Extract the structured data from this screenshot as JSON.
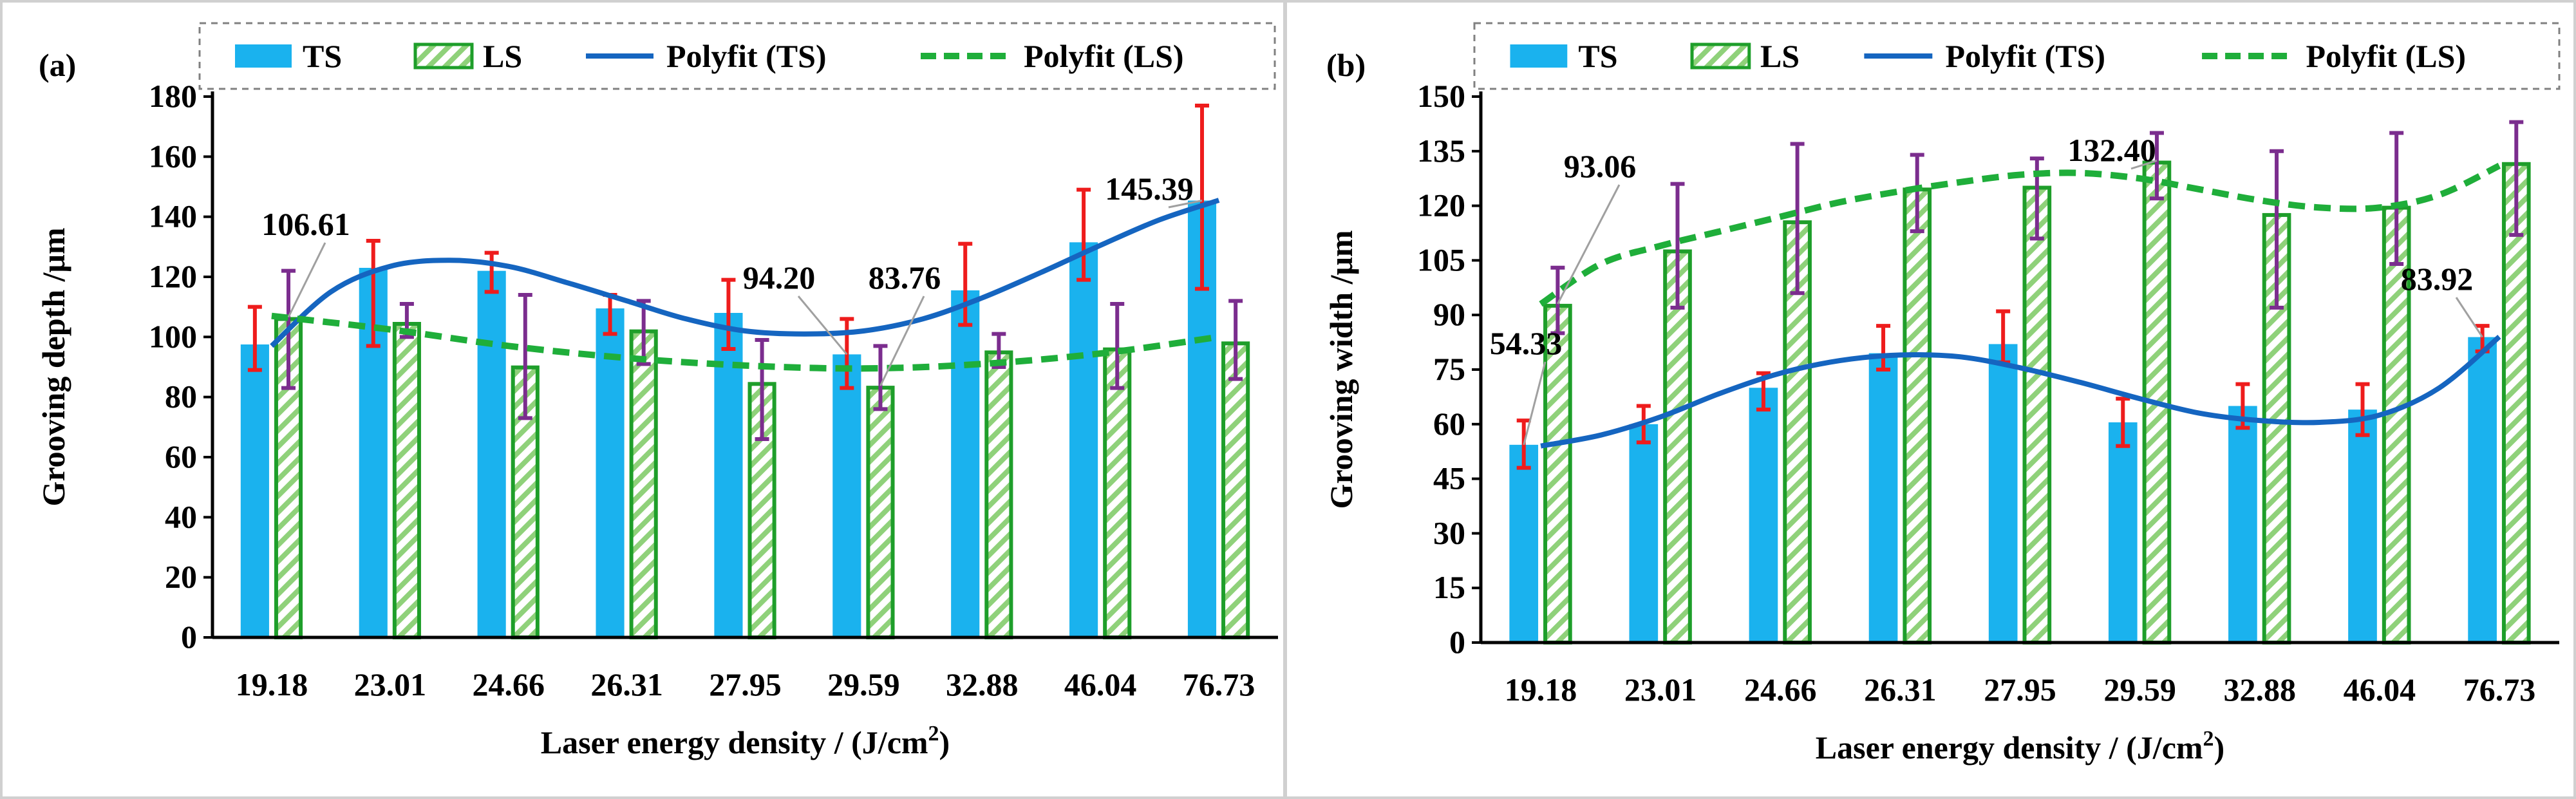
{
  "colors": {
    "ts_bar": "#1ab2ee",
    "ls_bar_stripe": "#8fd17a",
    "ls_bar_border": "#1e9e2a",
    "ts_fit": "#1565c0",
    "ls_fit": "#1fae3a",
    "ts_error": "#ee1c1c",
    "ls_error": "#7b2d8e",
    "axis": "#000000",
    "legend_border": "#808080"
  },
  "chart_data": [
    {
      "type": "bar",
      "panel_label": "(a)",
      "title": "",
      "xlabel": "Laser energy density / (J/cm",
      "xlabel_sup": "2",
      "xlabel_end": ")",
      "ylabel": "Grooving depth /μm",
      "categories": [
        "19.18",
        "23.01",
        "24.66",
        "26.31",
        "27.95",
        "29.59",
        "32.88",
        "46.04",
        "76.73"
      ],
      "ylim": [
        0,
        180
      ],
      "yticks": [
        "0",
        "20",
        "40",
        "60",
        "80",
        "100",
        "120",
        "140",
        "160",
        "180"
      ],
      "legend": [
        "TS",
        "LS",
        "Polyfit (TS)",
        "Polyfit (LS)"
      ],
      "series": [
        {
          "name": "TS",
          "values": [
            97.5,
            123,
            122,
            109.5,
            108,
            94.2,
            115.5,
            131.5,
            145.39
          ],
          "err_low": [
            89,
            97,
            115,
            101,
            96,
            83,
            104,
            119,
            116
          ],
          "err_high": [
            110,
            132,
            128,
            114,
            119,
            106,
            131,
            149,
            177
          ]
        },
        {
          "name": "LS",
          "values": [
            106.61,
            105,
            90.5,
            102.5,
            85,
            83.76,
            95.5,
            96.5,
            98.5
          ],
          "err_low": [
            83,
            100,
            73,
            91,
            66,
            76,
            90,
            83,
            86
          ],
          "err_high": [
            122,
            111,
            114,
            112,
            99,
            97,
            101,
            111,
            112
          ]
        }
      ],
      "fits": [
        {
          "name": "Polyfit (TS)",
          "x": [
            0,
            0.5,
            1,
            1.5,
            2,
            2.5,
            3,
            3.5,
            4,
            4.5,
            5,
            5.5,
            6,
            6.5,
            7,
            7.5,
            8
          ],
          "y": [
            97,
            115,
            123.5,
            125.5,
            123.5,
            118,
            112,
            106,
            102,
            101,
            102,
            106,
            113,
            121.5,
            130.5,
            139,
            145.5
          ]
        },
        {
          "name": "Polyfit (LS)",
          "x": [
            0,
            1,
            2,
            3,
            4,
            5,
            6,
            7,
            8
          ],
          "y": [
            107,
            102.5,
            97,
            93,
            90.5,
            89.5,
            91,
            94.5,
            100
          ]
        }
      ],
      "annotations": [
        {
          "text": "106.61",
          "index": 0,
          "series": "LS"
        },
        {
          "text": "94.20",
          "index": 5,
          "series": "TS"
        },
        {
          "text": "83.76",
          "index": 5,
          "series": "LS"
        },
        {
          "text": "145.39",
          "index": 8,
          "series": "TS"
        }
      ]
    },
    {
      "type": "bar",
      "panel_label": "(b)",
      "title": "",
      "xlabel": "Laser energy density / (J/cm",
      "xlabel_sup": "2",
      "xlabel_end": ")",
      "ylabel": "Grooving width /μm",
      "categories": [
        "19.18",
        "23.01",
        "24.66",
        "26.31",
        "27.95",
        "29.59",
        "32.88",
        "46.04",
        "76.73"
      ],
      "ylim": [
        0,
        150
      ],
      "yticks": [
        "0",
        "15",
        "30",
        "45",
        "60",
        "75",
        "90",
        "105",
        "120",
        "135",
        "150"
      ],
      "legend": [
        "TS",
        "LS",
        "Polyfit (TS)",
        "Polyfit (LS)"
      ],
      "series": [
        {
          "name": "TS",
          "values": [
            54.33,
            60,
            70,
            79.5,
            82,
            60.5,
            65,
            64,
            83.92
          ],
          "err_low": [
            48,
            55,
            64,
            75,
            77,
            54,
            59,
            57,
            80
          ],
          "err_high": [
            61,
            65,
            74,
            87,
            91,
            67,
            71,
            71,
            87
          ]
        },
        {
          "name": "LS",
          "values": [
            93.06,
            108,
            116,
            125,
            125.5,
            132.4,
            118,
            120,
            132
          ],
          "err_low": [
            85,
            92,
            96,
            113,
            111,
            122,
            92,
            104,
            112
          ],
          "err_high": [
            103,
            126,
            137,
            134,
            133,
            140,
            135,
            140,
            143
          ]
        }
      ],
      "fits": [
        {
          "name": "Polyfit (TS)",
          "x": [
            0,
            0.5,
            1,
            1.5,
            2,
            2.5,
            3,
            3.5,
            4,
            4.5,
            5,
            5.5,
            6,
            6.5,
            7,
            7.5,
            8
          ],
          "y": [
            54,
            57,
            62,
            68.5,
            74,
            77.5,
            79,
            78.5,
            75.5,
            71.5,
            67,
            63,
            61,
            60.5,
            62.5,
            70,
            84
          ]
        },
        {
          "name": "Polyfit (LS)",
          "x": [
            0,
            0.5,
            1,
            1.5,
            2,
            2.5,
            3,
            3.5,
            4,
            4.5,
            5,
            5.5,
            6,
            6.5,
            7,
            7.5,
            8
          ],
          "y": [
            93,
            104,
            109,
            113,
            117,
            121,
            124,
            126.5,
            128.5,
            129,
            127.5,
            124.5,
            121.5,
            119.5,
            119.5,
            123,
            131
          ]
        }
      ],
      "annotations": [
        {
          "text": "54.33",
          "index": 0,
          "series": "TS"
        },
        {
          "text": "93.06",
          "index": 0,
          "series": "LS"
        },
        {
          "text": "132.40",
          "index": 5,
          "series": "LS"
        },
        {
          "text": "83.92",
          "index": 8,
          "series": "TS"
        }
      ]
    }
  ]
}
